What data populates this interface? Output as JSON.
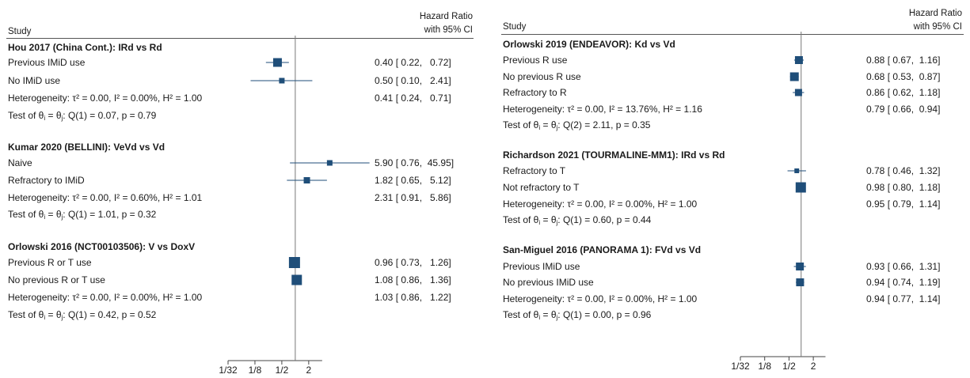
{
  "chart_data": [
    {
      "type": "forest",
      "columns": {
        "study": "Study",
        "effect": "Hazard Ratio",
        "effect_sub": "with 95% CI"
      },
      "x_scale": "log",
      "x_ticks": [
        {
          "value": 0.03125,
          "label": "1/32"
        },
        {
          "value": 0.125,
          "label": "1/8"
        },
        {
          "value": 0.5,
          "label": "1/2"
        },
        {
          "value": 2,
          "label": "2"
        }
      ],
      "x_range": [
        0.03125,
        4
      ],
      "reference_line": 1,
      "groups": [
        {
          "title": "Hou 2017 (China Cont.): IRd vs Rd",
          "rows": [
            {
              "label": "Previous IMiD use",
              "hr": 0.4,
              "lo": 0.22,
              "hi": 0.72,
              "ci_text": "0.40 [ 0.22,   0.72]"
            },
            {
              "label": "No IMiD use",
              "hr": 0.5,
              "lo": 0.1,
              "hi": 2.41,
              "ci_text": "0.50 [ 0.10,   2.41]"
            }
          ],
          "overall": {
            "label": "Heterogeneity: τ² = 0.00, I² = 0.00%, H² = 1.00",
            "hr": 0.41,
            "lo": 0.24,
            "hi": 0.71,
            "ci_text": "0.41 [ 0.24,   0.71]"
          },
          "test_prefix": "Test of θ",
          "test_suffix": " = θ",
          "test_rest": ": Q(1) = 0.07, p = 0.79"
        },
        {
          "title": "Kumar 2020 (BELLINI): VeVd vs Vd",
          "rows": [
            {
              "label": "Naive",
              "hr": 5.9,
              "lo": 0.76,
              "hi": 45.95,
              "ci_text": "5.90 [ 0.76,  45.95]"
            },
            {
              "label": "Refractory to IMiD",
              "hr": 1.82,
              "lo": 0.65,
              "hi": 5.12,
              "ci_text": "1.82 [ 0.65,   5.12]"
            }
          ],
          "overall": {
            "label": "Heterogeneity: τ² = 0.00, I² = 0.60%, H² = 1.01",
            "hr": 2.31,
            "lo": 0.91,
            "hi": 5.86,
            "ci_text": "2.31 [ 0.91,   5.86]"
          },
          "test_prefix": "Test of θ",
          "test_suffix": " = θ",
          "test_rest": ": Q(1) = 1.01, p = 0.32"
        },
        {
          "title": "Orlowski 2016 (NCT00103506): V vs DoxV",
          "rows": [
            {
              "label": "Previous R or T use",
              "hr": 0.96,
              "lo": 0.73,
              "hi": 1.26,
              "ci_text": "0.96 [ 0.73,   1.26]"
            },
            {
              "label": "No previous R or T use",
              "hr": 1.08,
              "lo": 0.86,
              "hi": 1.36,
              "ci_text": "1.08 [ 0.86,   1.36]"
            }
          ],
          "overall": {
            "label": "Heterogeneity: τ² = 0.00, I² = 0.00%, H² = 1.00",
            "hr": 1.03,
            "lo": 0.86,
            "hi": 1.22,
            "ci_text": "1.03 [ 0.86,   1.22]"
          },
          "test_prefix": "Test of θ",
          "test_suffix": " = θ",
          "test_rest": ": Q(1) = 0.42, p = 0.52"
        }
      ]
    },
    {
      "type": "forest",
      "columns": {
        "study": "Study",
        "effect": "Hazard Ratio",
        "effect_sub": "with 95% CI"
      },
      "x_scale": "log",
      "x_ticks": [
        {
          "value": 0.03125,
          "label": "1/32"
        },
        {
          "value": 0.125,
          "label": "1/8"
        },
        {
          "value": 0.5,
          "label": "1/2"
        },
        {
          "value": 2,
          "label": "2"
        }
      ],
      "x_range": [
        0.03125,
        4
      ],
      "reference_line": 1,
      "groups": [
        {
          "title": "Orlowski 2019 (ENDEAVOR): Kd vs Vd",
          "rows": [
            {
              "label": "Previous R use",
              "hr": 0.88,
              "lo": 0.67,
              "hi": 1.16,
              "ci_text": "0.88 [ 0.67,  1.16]"
            },
            {
              "label": "No previous R use",
              "hr": 0.68,
              "lo": 0.53,
              "hi": 0.87,
              "ci_text": "0.68 [ 0.53,  0.87]"
            },
            {
              "label": "Refractory to R",
              "hr": 0.86,
              "lo": 0.62,
              "hi": 1.18,
              "ci_text": "0.86 [ 0.62,  1.18]"
            }
          ],
          "overall": {
            "label": "Heterogeneity: τ² = 0.00, I² = 13.76%, H² = 1.16",
            "hr": 0.79,
            "lo": 0.66,
            "hi": 0.94,
            "ci_text": "0.79 [ 0.66,  0.94]"
          },
          "test_prefix": "Test of θ",
          "test_suffix": " = θ",
          "test_rest": ": Q(2) = 2.11, p = 0.35"
        },
        {
          "title": "Richardson 2021 (TOURMALINE-MM1): IRd vs Rd",
          "rows": [
            {
              "label": "Refractory to T",
              "hr": 0.78,
              "lo": 0.46,
              "hi": 1.32,
              "ci_text": "0.78 [ 0.46,  1.32]"
            },
            {
              "label": "Not refractory to T",
              "hr": 0.98,
              "lo": 0.8,
              "hi": 1.18,
              "ci_text": "0.98 [ 0.80,  1.18]"
            }
          ],
          "overall": {
            "label": "Heterogeneity: τ² = 0.00, I² = 0.00%, H² = 1.00",
            "hr": 0.95,
            "lo": 0.79,
            "hi": 1.14,
            "ci_text": "0.95 [ 0.79,  1.14]"
          },
          "test_prefix": "Test of θ",
          "test_suffix": " = θ",
          "test_rest": ": Q(1) = 0.60, p = 0.44"
        },
        {
          "title": "San-Miguel 2016 (PANORAMA 1): FVd vs Vd",
          "rows": [
            {
              "label": "Previous IMiD use",
              "hr": 0.93,
              "lo": 0.66,
              "hi": 1.31,
              "ci_text": "0.93 [ 0.66,  1.31]"
            },
            {
              "label": "No previous IMiD use",
              "hr": 0.94,
              "lo": 0.74,
              "hi": 1.19,
              "ci_text": "0.94 [ 0.74,  1.19]"
            }
          ],
          "overall": {
            "label": "Heterogeneity: τ² = 0.00, I² = 0.00%, H² = 1.00",
            "hr": 0.94,
            "lo": 0.77,
            "hi": 1.14,
            "ci_text": "0.94 [ 0.77,  1.14]"
          },
          "test_prefix": "Test of θ",
          "test_suffix": " = θ",
          "test_rest": ": Q(1) = 0.00, p = 0.96"
        }
      ]
    }
  ]
}
